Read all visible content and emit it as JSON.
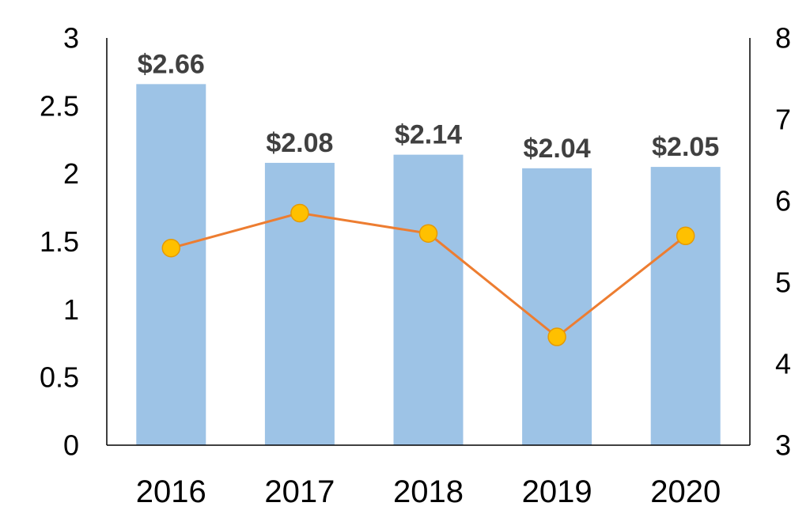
{
  "chart_data": {
    "type": "bar",
    "categories": [
      "2016",
      "2017",
      "2018",
      "2019",
      "2020"
    ],
    "series": [
      {
        "type": "bar",
        "axis": "left",
        "values": [
          2.66,
          2.08,
          2.14,
          2.04,
          2.05
        ],
        "data_labels": [
          "$2.66",
          "$2.08",
          "$2.14",
          "$2.04",
          "$2.05"
        ],
        "color": "#9DC3E6"
      },
      {
        "type": "line",
        "axis": "right",
        "values": [
          5.42,
          5.85,
          5.6,
          4.33,
          5.57
        ],
        "color": "#ED7D31",
        "marker_color": "#FFC000"
      }
    ],
    "y_left": {
      "ylim": [
        0,
        3
      ],
      "ticks": [
        "0",
        "0.5",
        "1",
        "1.5",
        "2",
        "2.5",
        "3"
      ]
    },
    "y_right": {
      "ylim": [
        3,
        8
      ],
      "ticks": [
        "3",
        "4",
        "5",
        "6",
        "7",
        "8"
      ]
    },
    "grid": false,
    "legend": "none"
  }
}
